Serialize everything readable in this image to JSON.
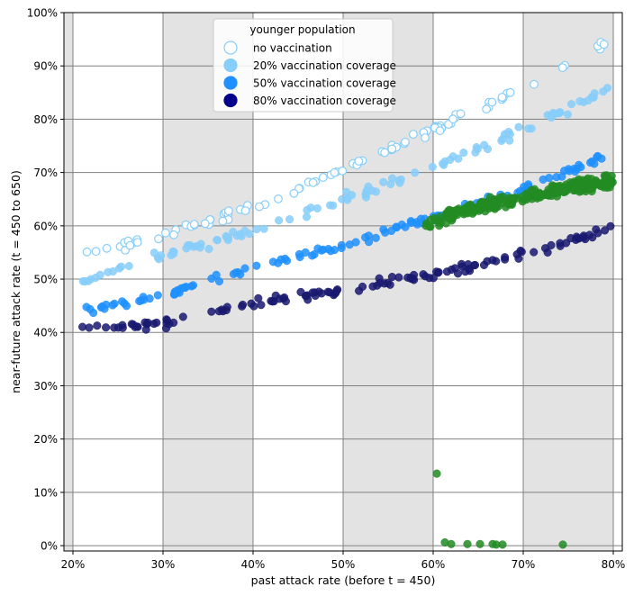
{
  "chart_data": {
    "type": "scatter",
    "xlabel": "past attack rate (before t = 450)",
    "ylabel": "near-future attack rate (t = 450 to 650)",
    "xlim": [
      0.19,
      0.81
    ],
    "ylim": [
      -0.01,
      1.0
    ],
    "x_ticks": [
      0.2,
      0.3,
      0.4,
      0.5,
      0.6,
      0.7,
      0.8
    ],
    "x_tick_labels": [
      "20%",
      "30%",
      "40%",
      "50%",
      "60%",
      "70%",
      "80%"
    ],
    "y_ticks": [
      0.0,
      0.1,
      0.2,
      0.3,
      0.4,
      0.5,
      0.6,
      0.7,
      0.8,
      0.9,
      1.0
    ],
    "y_tick_labels": [
      "0%",
      "10%",
      "20%",
      "30%",
      "40%",
      "50%",
      "60%",
      "70%",
      "80%",
      "90%",
      "100%"
    ],
    "grid": true,
    "shaded_x_bands": [
      [
        0.19,
        0.2
      ],
      [
        0.3,
        0.4
      ],
      [
        0.5,
        0.6
      ],
      [
        0.7,
        0.8
      ]
    ],
    "band_color": "#e3e3e3",
    "grid_color": "#808080",
    "legend": {
      "position": "top-center",
      "title": "younger population",
      "entries": [
        {
          "label": "no vaccination",
          "color": "#ffffff",
          "edge": "#87cefa"
        },
        {
          "label": "20% vaccination coverage",
          "color": "#87cefa",
          "edge": "#87cefa"
        },
        {
          "label": "50% vaccination coverage",
          "color": "#1e90ff",
          "edge": "#1e90ff"
        },
        {
          "label": "80% vaccination coverage",
          "color": "#00008b",
          "edge": "#00008b"
        }
      ]
    },
    "series": [
      {
        "color": "#ffffff",
        "edge": "#87cefa",
        "trend": [
          [
            0.2,
            0.54
          ],
          [
            0.3,
            0.58
          ],
          [
            0.4,
            0.635
          ],
          [
            0.5,
            0.705
          ],
          [
            0.6,
            0.78
          ],
          [
            0.7,
            0.86
          ],
          [
            0.8,
            0.95
          ]
        ],
        "x_range": [
          0.2,
          0.8
        ],
        "count": 95,
        "noise": 0.012
      },
      {
        "color": "#87cefa",
        "edge": "#87cefa",
        "trend": [
          [
            0.21,
            0.5
          ],
          [
            0.3,
            0.545
          ],
          [
            0.4,
            0.59
          ],
          [
            0.5,
            0.65
          ],
          [
            0.6,
            0.71
          ],
          [
            0.7,
            0.78
          ],
          [
            0.8,
            0.86
          ]
        ],
        "x_range": [
          0.21,
          0.8
        ],
        "count": 110,
        "noise": 0.014
      },
      {
        "color": "#1e90ff",
        "edge": "#1e90ff",
        "trend": [
          [
            0.21,
            0.44
          ],
          [
            0.3,
            0.47
          ],
          [
            0.4,
            0.52
          ],
          [
            0.5,
            0.565
          ],
          [
            0.6,
            0.615
          ],
          [
            0.7,
            0.67
          ],
          [
            0.8,
            0.735
          ]
        ],
        "x_range": [
          0.21,
          0.8
        ],
        "count": 120,
        "noise": 0.011
      },
      {
        "color": "#191970",
        "edge": "#191970",
        "trend": [
          [
            0.2,
            0.41
          ],
          [
            0.3,
            0.415
          ],
          [
            0.4,
            0.455
          ],
          [
            0.5,
            0.48
          ],
          [
            0.6,
            0.51
          ],
          [
            0.7,
            0.545
          ],
          [
            0.8,
            0.595
          ]
        ],
        "x_range": [
          0.2,
          0.8
        ],
        "count": 130,
        "noise": 0.012
      },
      {
        "color": "#228b22",
        "edge": "#228b22",
        "trend": [
          [
            0.59,
            0.6
          ],
          [
            0.65,
            0.635
          ],
          [
            0.7,
            0.655
          ],
          [
            0.75,
            0.67
          ],
          [
            0.8,
            0.685
          ]
        ],
        "x_range": [
          0.59,
          0.8
        ],
        "count": 260,
        "noise": 0.018,
        "outliers": [
          [
            0.604,
            0.135
          ],
          [
            0.613,
            0.006
          ],
          [
            0.62,
            0.003
          ],
          [
            0.638,
            0.003
          ],
          [
            0.652,
            0.003
          ],
          [
            0.666,
            0.003
          ],
          [
            0.67,
            0.002
          ],
          [
            0.677,
            0.002
          ],
          [
            0.744,
            0.002
          ]
        ]
      }
    ]
  }
}
